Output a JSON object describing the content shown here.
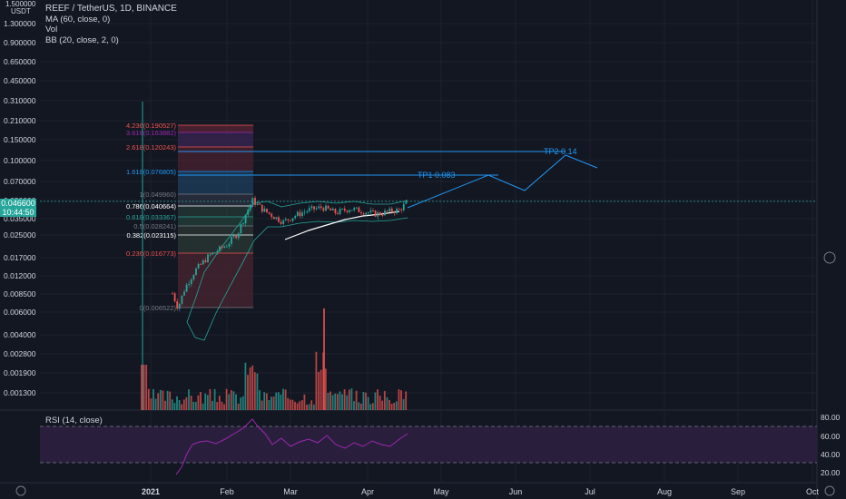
{
  "header": {
    "symbol_line": "REEF / TetherUS, 1D, BINANCE",
    "ma_line": "MA (60, close, 0)",
    "vol_line": "Vol",
    "bb_line": "BB (20, close, 2, 0)"
  },
  "rsi": {
    "label": "RSI (14, close)",
    "ticks": [
      "80.00",
      "60.00",
      "40.00",
      "20.00"
    ]
  },
  "price_axis": {
    "top_label_1": "1.500000",
    "top_label_2": "USDT",
    "ticks": [
      "1.300000",
      "0.900000",
      "0.650000",
      "0.450000",
      "0.310000",
      "0.210000",
      "0.150000",
      "0.100000",
      "0.070000",
      "0.050000",
      "0.035000",
      "0.025000",
      "0.017000",
      "0.012000",
      "0.008500",
      "0.006000",
      "0.004000",
      "0.002800",
      "0.001900",
      "0.001300"
    ],
    "current_price": "0.046600",
    "countdown": "10:44:50"
  },
  "time_axis": {
    "labels": [
      "2021",
      "Feb",
      "Mar",
      "Apr",
      "May",
      "Jun",
      "Jul",
      "Aug",
      "Sep",
      "Oct"
    ]
  },
  "fibonacci": [
    {
      "text": "4.236(0.190527)",
      "color": "#ef5350"
    },
    {
      "text": "3.618(0.163882)",
      "color": "#9c27b0"
    },
    {
      "text": "2.618(0.120243)",
      "color": "#ef5350"
    },
    {
      "text": "1.618(0.076805)",
      "color": "#2196f3"
    },
    {
      "text": "1(0.049960)",
      "color": "#787b86"
    },
    {
      "text": "0.786(0.040664)",
      "color": "#ffffff"
    },
    {
      "text": "0.618(0.033367)",
      "color": "#26a69a"
    },
    {
      "text": "0.5(0.028241)",
      "color": "#787b86"
    },
    {
      "text": "0.382(0.023115)",
      "color": "#ffffff"
    },
    {
      "text": "0.236(0.016773)",
      "color": "#ef5350"
    },
    {
      "text": "0(0.006522)",
      "color": "#787b86"
    }
  ],
  "annotations": {
    "tp1": "TP1 0.083",
    "tp2": "TP2 0.14"
  },
  "colors": {
    "background": "#131722",
    "up": "#26a69a",
    "down": "#ef5350",
    "tp_line": "#2196f3",
    "rsi_line": "#9c27b0",
    "rsi_band": "#2a1e3d"
  },
  "chart_data": {
    "type": "candlestick",
    "title": "REEF / TetherUS, 1D, BINANCE",
    "y_scale": "log",
    "ylim": [
      0.0011,
      1.5
    ],
    "x_range": [
      "2020-12-28",
      "2021-10-05"
    ],
    "price_series_approx": [
      {
        "date": "2020-12-28",
        "price": 0.0012
      },
      {
        "date": "2021-01-15",
        "price": 0.0085
      },
      {
        "date": "2021-01-21",
        "price": 0.0065
      },
      {
        "date": "2021-02-01",
        "price": 0.02
      },
      {
        "date": "2021-02-15",
        "price": 0.048
      },
      {
        "date": "2021-03-01",
        "price": 0.034
      },
      {
        "date": "2021-03-20",
        "price": 0.042
      },
      {
        "date": "2021-04-10",
        "price": 0.04
      },
      {
        "date": "2021-04-18",
        "price": 0.0466
      }
    ],
    "current_price": 0.0466,
    "targets": [
      {
        "label": "TP1 0.083",
        "value": 0.083
      },
      {
        "label": "TP2 0.14",
        "value": 0.14
      }
    ],
    "rsi_levels": [
      80,
      60,
      40,
      20
    ],
    "grid": true
  }
}
